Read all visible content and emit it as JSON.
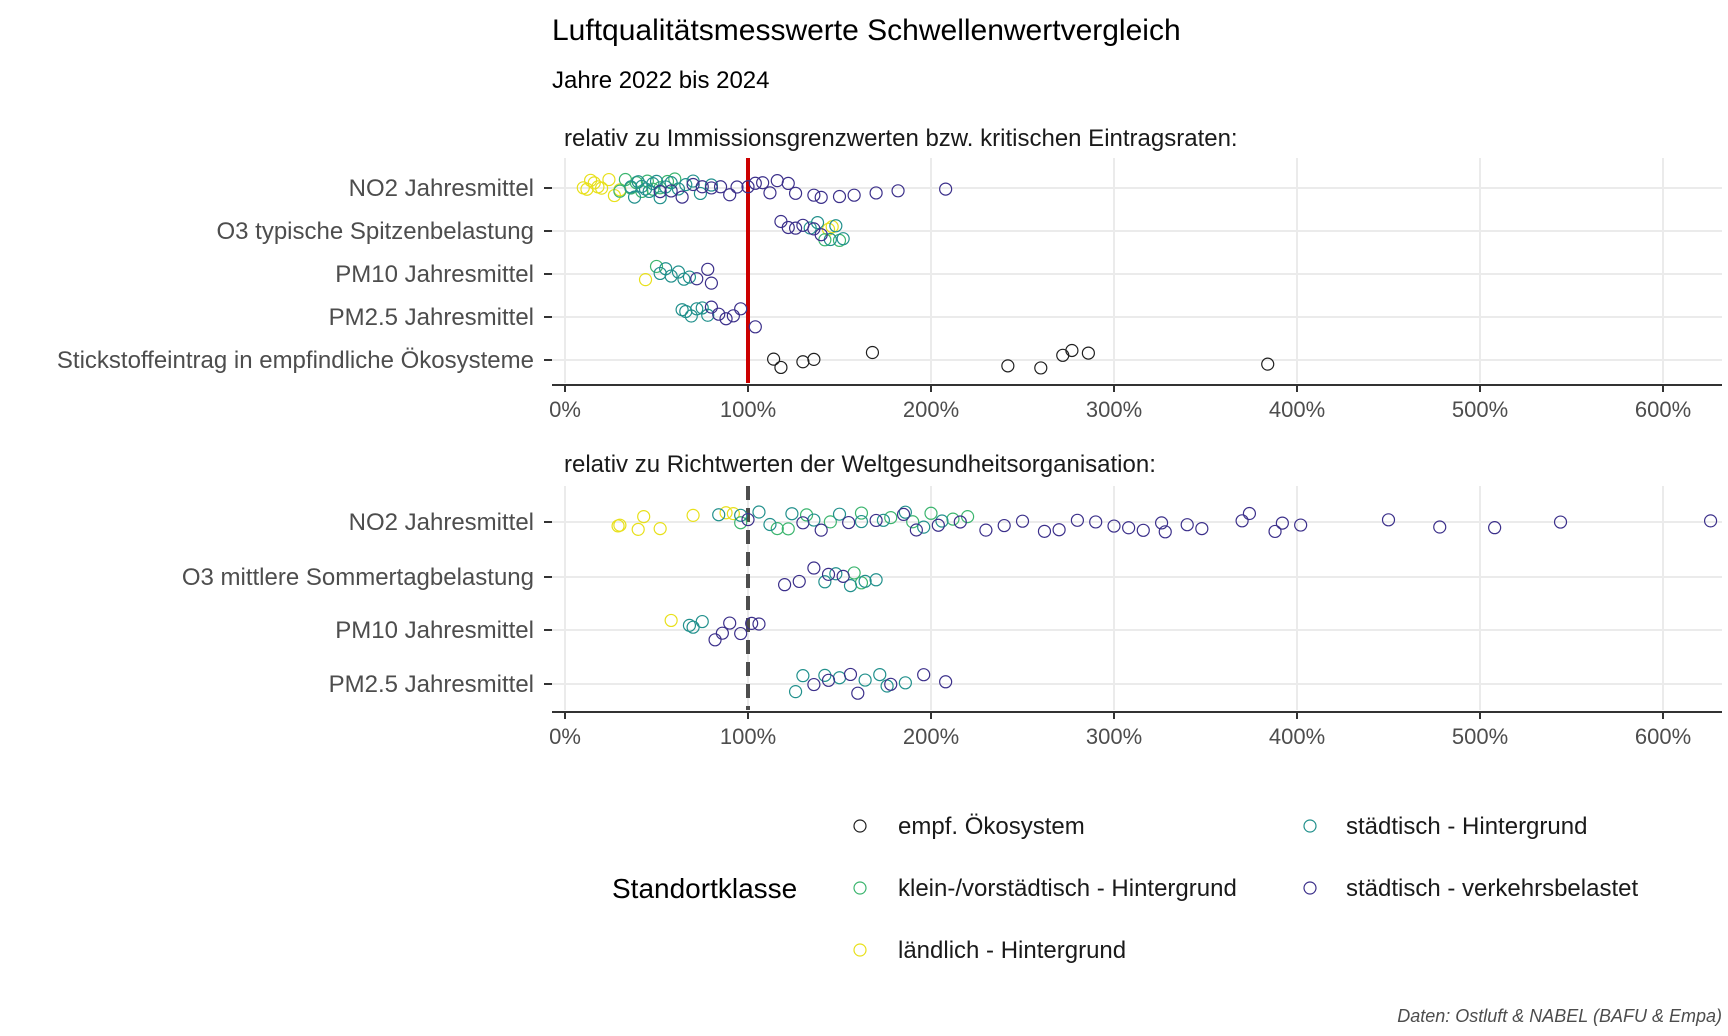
{
  "title": "Luftqualitätsmesswerte Schwellenwertvergleich",
  "subtitle": "Jahre 2022 bis 2024",
  "caption": "Daten: Ostluft & NABEL (BAFU & Empa)",
  "legend": {
    "title": "Standortklasse",
    "items": [
      {
        "label": "empf. Ökosystem",
        "color": "#440154"
      },
      {
        "label": "städtisch - Hintergrund",
        "color": "#21908c"
      },
      {
        "label": "klein-/vorstädtisch - Hintergrund",
        "color": "#3bb56e"
      },
      {
        "label": "städtisch - verkehrsbelastet",
        "color": "#3b2f8a"
      },
      {
        "label": "ländlich - Hintergrund",
        "color": "#fde725"
      }
    ]
  },
  "colors": {
    "empf. Ökosystem": "#1f1f1f",
    "städtisch - Hintergrund": "#21908c",
    "klein-/vorstädtisch - Hintergrund": "#3bb56e",
    "städtisch - verkehrsbelastet": "#3b2f8a",
    "ländlich - Hintergrund": "#e8e01a",
    "reference_solid": "#cc0000",
    "reference_dashed": "#4d4d4d"
  },
  "chart_data": [
    {
      "type": "scatter",
      "title": "relativ zu Immissionsgrenzwerten bzw. kritischen Eintragsraten:",
      "reference": {
        "x": 1.0,
        "style": "solid",
        "color": "#cc0000"
      },
      "xlim": [
        0,
        6.3
      ],
      "xticks": [
        0,
        1,
        2,
        3,
        4,
        5,
        6
      ],
      "xtick_labels": [
        "0%",
        "100%",
        "200%",
        "300%",
        "400%",
        "500%",
        "600%"
      ],
      "categories": [
        "NO2 Jahresmittel",
        "O3 typische Spitzenbelastung",
        "PM10 Jahresmittel",
        "PM2.5 Jahresmittel",
        "Stickstoffeintrag in empfindliche Ökosysteme"
      ],
      "series": [
        {
          "name": "ländlich - Hintergrund",
          "points": [
            [
              "NO2 Jahresmittel",
              [
                0.1,
                0.12,
                0.14,
                0.16,
                0.18,
                0.2,
                0.24,
                0.27,
                0.3
              ]
            ],
            [
              "O3 typische Spitzenbelastung",
              [
                1.44,
                1.46
              ]
            ],
            [
              "PM10 Jahresmittel",
              [
                0.44
              ]
            ]
          ]
        },
        {
          "name": "klein-/vorstädtisch - Hintergrund",
          "points": [
            [
              "NO2 Jahresmittel",
              [
                0.3,
                0.33,
                0.36,
                0.39,
                0.42,
                0.45,
                0.48,
                0.52,
                0.56,
                0.6
              ]
            ],
            [
              "O3 typische Spitzenbelastung",
              [
                1.42,
                1.5
              ]
            ],
            [
              "PM10 Jahresmittel",
              [
                0.5
              ]
            ]
          ]
        },
        {
          "name": "städtisch - Hintergrund",
          "points": [
            [
              "NO2 Jahresmittel",
              [
                0.36,
                0.38,
                0.4,
                0.42,
                0.44,
                0.46,
                0.48,
                0.5,
                0.52,
                0.55,
                0.58,
                0.62,
                0.66,
                0.7,
                0.74,
                0.8
              ]
            ],
            [
              "O3 typische Spitzenbelastung",
              [
                1.34,
                1.38,
                1.45,
                1.48,
                1.52
              ]
            ],
            [
              "PM10 Jahresmittel",
              [
                0.52,
                0.55,
                0.58,
                0.62,
                0.65,
                0.68
              ]
            ],
            [
              "PM2.5 Jahresmittel",
              [
                0.64,
                0.66,
                0.69,
                0.72,
                0.75,
                0.78
              ]
            ]
          ]
        },
        {
          "name": "städtisch - verkehrsbelastet",
          "points": [
            [
              "NO2 Jahresmittel",
              [
                0.52,
                0.58,
                0.64,
                0.7,
                0.75,
                0.8,
                0.85,
                0.9,
                0.94,
                1.0,
                1.04,
                1.08,
                1.12,
                1.16,
                1.22,
                1.26,
                1.36,
                1.4,
                1.5,
                1.58,
                1.7,
                1.82,
                2.08
              ]
            ],
            [
              "O3 typische Spitzenbelastung",
              [
                1.18,
                1.22,
                1.26,
                1.3,
                1.36,
                1.4
              ]
            ],
            [
              "PM10 Jahresmittel",
              [
                0.72,
                0.78,
                0.8
              ]
            ],
            [
              "PM2.5 Jahresmittel",
              [
                0.8,
                0.84,
                0.88,
                0.92,
                0.96,
                1.04
              ]
            ]
          ]
        },
        {
          "name": "empf. Ökosystem",
          "points": [
            [
              "Stickstoffeintrag in empfindliche Ökosysteme",
              [
                1.14,
                1.18,
                1.3,
                1.36,
                1.68,
                2.42,
                2.6,
                2.72,
                2.77,
                2.86,
                3.84
              ]
            ]
          ]
        }
      ]
    },
    {
      "type": "scatter",
      "title": "relativ zu Richtwerten der Weltgesundheitsorganisation:",
      "reference": {
        "x": 1.0,
        "style": "dashed",
        "color": "#4d4d4d"
      },
      "xlim": [
        0,
        6.3
      ],
      "xticks": [
        0,
        1,
        2,
        3,
        4,
        5,
        6
      ],
      "xtick_labels": [
        "0%",
        "100%",
        "200%",
        "300%",
        "400%",
        "500%",
        "600%"
      ],
      "categories": [
        "NO2 Jahresmittel",
        "O3 mittlere Sommertagbelastung",
        "PM10 Jahresmittel",
        "PM2.5 Jahresmittel"
      ],
      "series": [
        {
          "name": "ländlich - Hintergrund",
          "points": [
            [
              "NO2 Jahresmittel",
              [
                0.29,
                0.3,
                0.4,
                0.43,
                0.52,
                0.7,
                0.88,
                0.92
              ]
            ],
            [
              "PM10 Jahresmittel",
              [
                0.58
              ]
            ]
          ]
        },
        {
          "name": "klein-/vorstädtisch - Hintergrund",
          "points": [
            [
              "NO2 Jahresmittel",
              [
                0.96,
                1.16,
                1.22,
                1.32,
                1.45,
                1.62,
                1.78,
                1.9,
                2.0,
                2.12,
                2.2
              ]
            ],
            [
              "O3 mittlere Sommertagbelastung",
              [
                1.58,
                1.62
              ]
            ]
          ]
        },
        {
          "name": "städtisch - Hintergrund",
          "points": [
            [
              "NO2 Jahresmittel",
              [
                0.84,
                0.96,
                1.06,
                1.12,
                1.24,
                1.36,
                1.5,
                1.62,
                1.74,
                1.86,
                1.96,
                2.06
              ]
            ],
            [
              "O3 mittlere Sommertagbelastung",
              [
                1.42,
                1.48,
                1.56,
                1.64,
                1.7
              ]
            ],
            [
              "PM10 Jahresmittel",
              [
                0.68,
                0.7,
                0.75
              ]
            ],
            [
              "PM2.5 Jahresmittel",
              [
                1.26,
                1.3,
                1.42,
                1.5,
                1.64,
                1.72,
                1.76,
                1.86
              ]
            ]
          ]
        },
        {
          "name": "städtisch - verkehrsbelastet",
          "points": [
            [
              "NO2 Jahresmittel",
              [
                1.0,
                1.3,
                1.4,
                1.55,
                1.7,
                1.85,
                1.92,
                2.04,
                2.16,
                2.3,
                2.4,
                2.5,
                2.62,
                2.7,
                2.8,
                2.9,
                3.0,
                3.08,
                3.16,
                3.26,
                3.28,
                3.4,
                3.48,
                3.7,
                3.74,
                3.88,
                3.92,
                4.02,
                4.5,
                4.78,
                5.08,
                5.44,
                6.26
              ]
            ],
            [
              "O3 mittlere Sommertagbelastung",
              [
                1.2,
                1.28,
                1.36,
                1.44,
                1.52
              ]
            ],
            [
              "PM10 Jahresmittel",
              [
                0.82,
                0.86,
                0.9,
                0.96,
                1.02,
                1.06
              ]
            ],
            [
              "PM2.5 Jahresmittel",
              [
                1.36,
                1.44,
                1.56,
                1.6,
                1.78,
                1.96,
                2.08
              ]
            ]
          ]
        }
      ]
    }
  ]
}
